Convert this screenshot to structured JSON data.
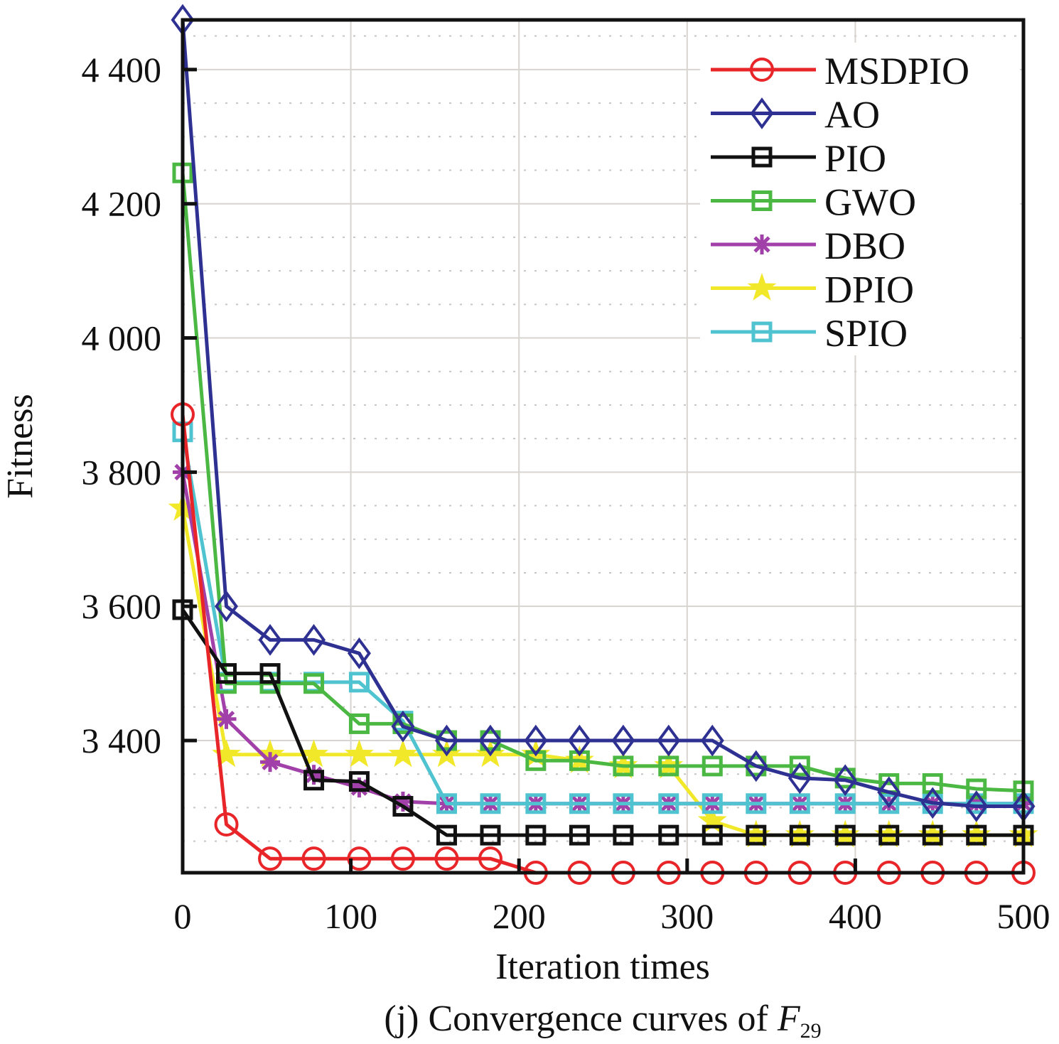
{
  "chart_data": {
    "type": "line",
    "title": "",
    "caption": {
      "prefix": "(j) Convergence curves of ",
      "function_name": "F",
      "function_subscript": "29"
    },
    "xlabel": "Iteration times",
    "ylabel": "Fitness",
    "xlim": [
      0,
      500
    ],
    "ylim": [
      3203,
      4474
    ],
    "xticks": [
      0,
      100,
      200,
      300,
      400,
      500
    ],
    "xtick_labels": [
      "0",
      "100",
      "200",
      "300",
      "400",
      "500"
    ],
    "yticks": [
      3400,
      3600,
      3800,
      4000,
      4200,
      4400
    ],
    "ytick_labels": [
      "3 400",
      "3 600",
      "3 800",
      "4 000",
      "4 200",
      "4 400"
    ],
    "grid": true,
    "legend_position": "top-right",
    "x": [
      0,
      26,
      52,
      78,
      105,
      131,
      157,
      183,
      210,
      236,
      262,
      289,
      315,
      341,
      367,
      394,
      420,
      446,
      472,
      500
    ],
    "series": [
      {
        "name": "MSDPIO",
        "color": "#e8262a",
        "marker": "circle",
        "values": [
          3886,
          3275,
          3224,
          3224,
          3224,
          3224,
          3224,
          3224,
          3203,
          3203,
          3203,
          3203,
          3203,
          3203,
          3203,
          3203,
          3203,
          3203,
          3203,
          3203
        ]
      },
      {
        "name": "AO",
        "color": "#2e3192",
        "marker": "diamond",
        "values": [
          4474,
          3600,
          3550,
          3550,
          3530,
          3421,
          3400,
          3400,
          3400,
          3400,
          3400,
          3400,
          3400,
          3362,
          3344,
          3341,
          3323,
          3307,
          3302,
          3302
        ]
      },
      {
        "name": "PIO",
        "color": "#111111",
        "marker": "square",
        "values": [
          3595,
          3500,
          3500,
          3341,
          3339,
          3302,
          3259,
          3259,
          3259,
          3259,
          3259,
          3259,
          3259,
          3259,
          3259,
          3259,
          3259,
          3259,
          3259,
          3259
        ]
      },
      {
        "name": "GWO",
        "color": "#4bb843",
        "marker": "square",
        "values": [
          4246,
          3485,
          3485,
          3485,
          3425,
          3425,
          3400,
          3400,
          3370,
          3370,
          3362,
          3362,
          3362,
          3362,
          3362,
          3344,
          3336,
          3336,
          3328,
          3325
        ]
      },
      {
        "name": "DBO",
        "color": "#a040a8",
        "marker": "asterisk",
        "values": [
          3800,
          3432,
          3368,
          3349,
          3330,
          3309,
          3306,
          3306,
          3306,
          3306,
          3306,
          3306,
          3306,
          3306,
          3306,
          3306,
          3306,
          3306,
          3306,
          3306
        ]
      },
      {
        "name": "DPIO",
        "color": "#f2e82a",
        "marker": "star",
        "values": [
          3746,
          3379,
          3379,
          3379,
          3379,
          3379,
          3379,
          3379,
          3379,
          3370,
          3362,
          3362,
          3280,
          3259,
          3259,
          3259,
          3259,
          3259,
          3259,
          3259
        ]
      },
      {
        "name": "SPIO",
        "color": "#4fc3cf",
        "marker": "square",
        "values": [
          3860,
          3487,
          3487,
          3487,
          3487,
          3429,
          3306,
          3306,
          3306,
          3306,
          3306,
          3306,
          3306,
          3306,
          3306,
          3306,
          3306,
          3306,
          3306,
          3306
        ]
      }
    ]
  }
}
